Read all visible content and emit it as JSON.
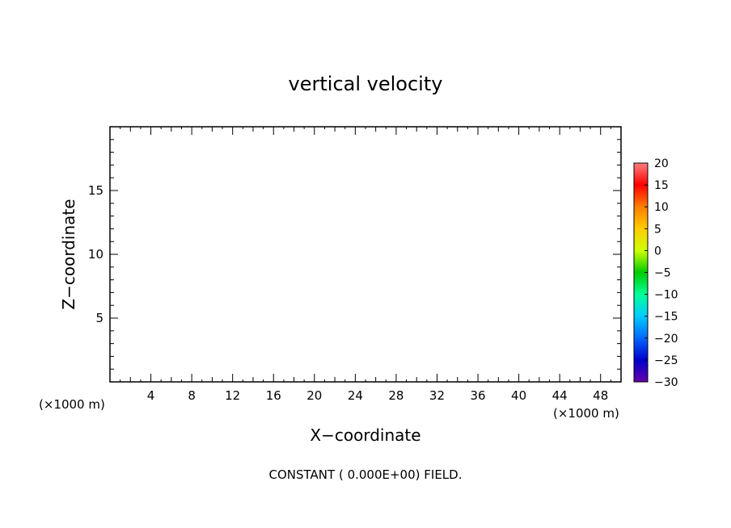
{
  "chart_data": {
    "type": "heatmap",
    "title": "vertical velocity",
    "xlabel": "X−coordinate",
    "ylabel": "Z−coordinate",
    "x_unit": "(×1000 m)",
    "xlim": [
      0,
      50
    ],
    "ylim": [
      0,
      20
    ],
    "x_ticks": [
      4,
      8,
      12,
      16,
      20,
      24,
      28,
      32,
      36,
      40,
      44,
      48
    ],
    "y_ticks": [
      5,
      10,
      15
    ],
    "field_value": 0,
    "colorbar": {
      "levels": [
        "20",
        "15",
        "10",
        "5",
        "0",
        "−5",
        "−10",
        "−15",
        "−20",
        "−25",
        "−30"
      ],
      "values": [
        20,
        15,
        10,
        5,
        0,
        -5,
        -10,
        -15,
        -20,
        -25,
        -30
      ],
      "colors": [
        "#ff8080",
        "#ff0000",
        "#ff7f00",
        "#ffcc00",
        "#ccff00",
        "#00cc00",
        "#00ff99",
        "#00ccff",
        "#0066ff",
        "#0000cc",
        "#6600aa"
      ]
    },
    "annotation": "CONSTANT ( 0.000E+00) FIELD."
  }
}
